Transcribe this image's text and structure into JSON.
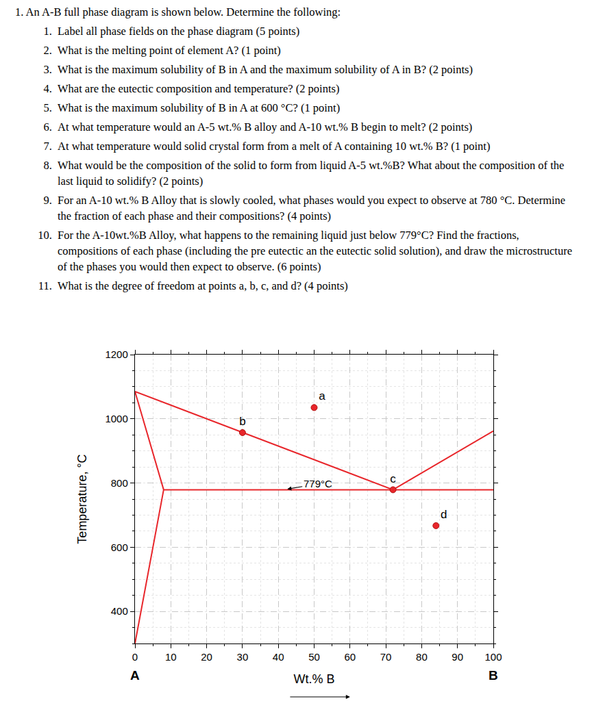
{
  "document": {
    "heading": "1. An A-B full phase diagram is shown below. Determine the following:",
    "questions": [
      "Label all phase fields on the phase diagram (5 points)",
      "What is the melting point of element A? (1 point)",
      "What is the maximum solubility of B in A and the maximum solubility of A in B? (2 points)",
      "What are the eutectic composition and temperature? (2 points)",
      "What is the maximum solubility of B in A at 600 °C? (1 point)",
      "At what temperature would an A-5 wt.% B alloy and A-10 wt.% B begin to melt? (2 points)",
      "At what temperature would solid crystal form from a melt of A containing 10 wt.% B? (1 point)",
      "What would be the composition of the solid to form from liquid A-5 wt.%B? What about the composition of the last liquid to solidify? (2 points)",
      "For an A-10 wt.% B Alloy that is slowly cooled, what phases would you expect to observe at 780 °C. Determine the fraction of each phase and their compositions? (4 points)",
      "For the A-10wt.%B Alloy, what happens to the remaining liquid just below 779°C? Find the fractions, compositions of each phase (including the pre eutectic an the eutectic solid solution), and draw the microstructure of the phases you would then expect to observe. (6 points)",
      "What is the degree of freedom at points a, b, c, and d? (4 points)"
    ]
  },
  "chart_data": {
    "type": "line",
    "x_label": "Wt.% B",
    "y_label": "Temperature, °C",
    "xlim": [
      0,
      100
    ],
    "ylim": [
      300,
      1200
    ],
    "xticks": [
      0,
      10,
      20,
      30,
      40,
      50,
      60,
      70,
      80,
      90,
      100
    ],
    "yticks": [
      400,
      600,
      800,
      1000,
      1200
    ],
    "grid": true,
    "series": [
      {
        "color": "#e8262b",
        "x": [
          0,
          72,
          100
        ],
        "values": [
          1085,
          779,
          962
        ]
      },
      {
        "color": "#e8262b",
        "x": [
          0,
          8,
          0
        ],
        "values": [
          1085,
          779,
          300
        ]
      },
      {
        "color": "#e8262b",
        "x": [
          8,
          100
        ],
        "values": [
          779,
          779
        ]
      },
      {
        "type": "scatter",
        "marker": "circle",
        "color": "#e8262b",
        "x": [
          50,
          30,
          72,
          84
        ],
        "values": [
          1035,
          957,
          779,
          667
        ],
        "point_labels": [
          "a",
          "b",
          "c",
          "d"
        ]
      }
    ],
    "annotations": [
      {
        "text": "779°C",
        "x": 42.5,
        "y": 781,
        "text_x": 51,
        "text_y": 797
      }
    ],
    "end_labels": [
      {
        "text": "A",
        "x": 0
      },
      {
        "text": "B",
        "x": 100
      }
    ]
  }
}
